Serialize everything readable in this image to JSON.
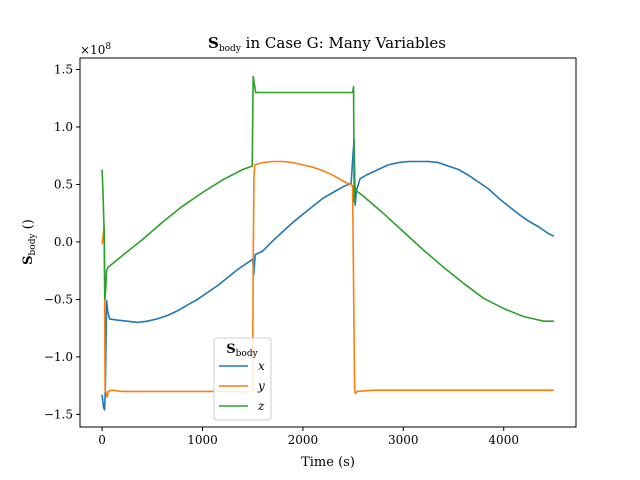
{
  "chart_data": {
    "type": "line",
    "title": "S",
    "title_sub": "body",
    "title_rest": " in Case G: Many Variables",
    "xlabel": "Time (s)",
    "ylabel": "S",
    "ylabel_sub": "body",
    "ylabel_rest": " ()",
    "y_multiplier": "×10",
    "y_multiplier_exp": "8",
    "xlim": [
      -220,
      4720
    ],
    "ylim": [
      -1.61,
      1.6
    ],
    "x_ticks": [
      0,
      1000,
      2000,
      3000,
      4000
    ],
    "x_tick_labels": [
      "0",
      "1000",
      "2000",
      "3000",
      "4000"
    ],
    "y_ticks": [
      -1.5,
      -1.0,
      -0.5,
      0.0,
      0.5,
      1.0,
      1.5
    ],
    "y_tick_labels": [
      "−1.5",
      "−1.0",
      "−0.5",
      "0.0",
      "0.5",
      "1.0",
      "1.5"
    ],
    "grid": false,
    "legend": {
      "title": "S",
      "title_sub": "body",
      "placement": "lower-center"
    },
    "series": [
      {
        "name": "x",
        "color": "#1f77b4",
        "points": [
          [
            0,
            -1.33
          ],
          [
            15,
            -1.44
          ],
          [
            25,
            -1.46
          ],
          [
            32,
            -1.3
          ],
          [
            45,
            -0.51
          ],
          [
            55,
            -0.6
          ],
          [
            75,
            -0.67
          ],
          [
            150,
            -0.68
          ],
          [
            250,
            -0.69
          ],
          [
            350,
            -0.7
          ],
          [
            450,
            -0.69
          ],
          [
            550,
            -0.67
          ],
          [
            650,
            -0.64
          ],
          [
            750,
            -0.6
          ],
          [
            850,
            -0.55
          ],
          [
            950,
            -0.5
          ],
          [
            1050,
            -0.44
          ],
          [
            1150,
            -0.38
          ],
          [
            1250,
            -0.31
          ],
          [
            1350,
            -0.24
          ],
          [
            1450,
            -0.18
          ],
          [
            1500,
            -0.15
          ],
          [
            1510,
            -0.29
          ],
          [
            1525,
            -0.11
          ],
          [
            1600,
            -0.08
          ],
          [
            1700,
            0.01
          ],
          [
            1800,
            0.09
          ],
          [
            1900,
            0.17
          ],
          [
            2000,
            0.24
          ],
          [
            2100,
            0.31
          ],
          [
            2200,
            0.38
          ],
          [
            2300,
            0.43
          ],
          [
            2400,
            0.48
          ],
          [
            2480,
            0.51
          ],
          [
            2510,
            0.9
          ],
          [
            2520,
            0.32
          ],
          [
            2535,
            0.45
          ],
          [
            2570,
            0.55
          ],
          [
            2650,
            0.59
          ],
          [
            2750,
            0.63
          ],
          [
            2850,
            0.67
          ],
          [
            2950,
            0.69
          ],
          [
            3050,
            0.7
          ],
          [
            3150,
            0.7
          ],
          [
            3250,
            0.7
          ],
          [
            3350,
            0.69
          ],
          [
            3450,
            0.66
          ],
          [
            3550,
            0.63
          ],
          [
            3650,
            0.58
          ],
          [
            3750,
            0.52
          ],
          [
            3850,
            0.46
          ],
          [
            3950,
            0.38
          ],
          [
            4050,
            0.31
          ],
          [
            4150,
            0.24
          ],
          [
            4250,
            0.18
          ],
          [
            4350,
            0.13
          ],
          [
            4450,
            0.07
          ],
          [
            4500,
            0.05
          ]
        ]
      },
      {
        "name": "y",
        "color": "#ff7f0e",
        "points": [
          [
            0,
            -0.02
          ],
          [
            10,
            0.05
          ],
          [
            22,
            0.14
          ],
          [
            30,
            -1.29
          ],
          [
            40,
            -1.31
          ],
          [
            50,
            -1.35
          ],
          [
            60,
            -1.3
          ],
          [
            100,
            -1.29
          ],
          [
            200,
            -1.3
          ],
          [
            400,
            -1.3
          ],
          [
            600,
            -1.3
          ],
          [
            800,
            -1.3
          ],
          [
            1000,
            -1.3
          ],
          [
            1200,
            -1.3
          ],
          [
            1400,
            -1.3
          ],
          [
            1498,
            -1.3
          ],
          [
            1505,
            -0.2
          ],
          [
            1512,
            0.55
          ],
          [
            1520,
            0.67
          ],
          [
            1600,
            0.69
          ],
          [
            1700,
            0.7
          ],
          [
            1800,
            0.7
          ],
          [
            1900,
            0.69
          ],
          [
            2000,
            0.67
          ],
          [
            2100,
            0.65
          ],
          [
            2200,
            0.62
          ],
          [
            2300,
            0.58
          ],
          [
            2400,
            0.53
          ],
          [
            2495,
            0.49
          ],
          [
            2505,
            -0.4
          ],
          [
            2515,
            -1.28
          ],
          [
            2525,
            -1.32
          ],
          [
            2540,
            -1.3
          ],
          [
            2700,
            -1.29
          ],
          [
            3000,
            -1.29
          ],
          [
            3500,
            -1.29
          ],
          [
            4000,
            -1.29
          ],
          [
            4500,
            -1.29
          ]
        ]
      },
      {
        "name": "z",
        "color": "#2ca02c",
        "points": [
          [
            0,
            0.63
          ],
          [
            10,
            0.4
          ],
          [
            20,
            0.1
          ],
          [
            28,
            -0.5
          ],
          [
            38,
            -0.38
          ],
          [
            45,
            -0.25
          ],
          [
            60,
            -0.22
          ],
          [
            200,
            -0.12
          ],
          [
            400,
            0.02
          ],
          [
            600,
            0.17
          ],
          [
            800,
            0.31
          ],
          [
            1000,
            0.43
          ],
          [
            1200,
            0.54
          ],
          [
            1400,
            0.63
          ],
          [
            1495,
            0.66
          ],
          [
            1505,
            1.44
          ],
          [
            1515,
            1.38
          ],
          [
            1530,
            1.3
          ],
          [
            1700,
            1.3
          ],
          [
            2000,
            1.3
          ],
          [
            2300,
            1.3
          ],
          [
            2495,
            1.3
          ],
          [
            2505,
            1.35
          ],
          [
            2510,
            0.35
          ],
          [
            2515,
            0.5
          ],
          [
            2525,
            0.45
          ],
          [
            2600,
            0.4
          ],
          [
            2800,
            0.25
          ],
          [
            3000,
            0.09
          ],
          [
            3200,
            -0.07
          ],
          [
            3400,
            -0.22
          ],
          [
            3600,
            -0.36
          ],
          [
            3800,
            -0.49
          ],
          [
            4000,
            -0.58
          ],
          [
            4200,
            -0.65
          ],
          [
            4400,
            -0.69
          ],
          [
            4500,
            -0.69
          ]
        ]
      }
    ]
  }
}
